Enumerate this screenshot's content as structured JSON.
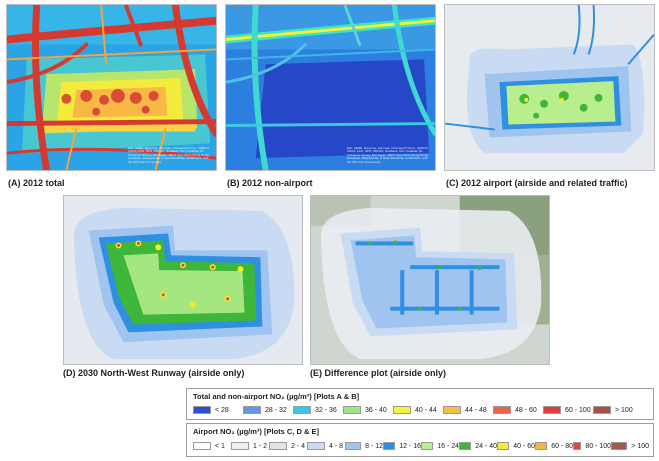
{
  "panels": [
    {
      "id": "A",
      "caption": "(A) 2012 total",
      "credit": "Esri, HERE, DeLorme, Intermap, increment P Corp., GEBCO, USGS, FAO, NPS, NRCAN, GeoBase, IGN, Kadaster NL, Ordnance Survey, Esri Japan, METI, Esri China (Hong Kong), swisstopo, MapmyIndia, © OpenStreetMap contributors, and the GIS User Community"
    },
    {
      "id": "B",
      "caption": "(B) 2012 non-airport",
      "credit": "Esri, HERE, DeLorme, Intermap, increment P Corp., GEBCO, USGS, FAO, NPS, NRCAN, GeoBase, IGN, Kadaster NL, Ordnance Survey, Esri Japan, METI, Esri China (Hong Kong), swisstopo, MapmyIndia, © OpenStreetMap contributors, and the GIS User Community"
    },
    {
      "id": "C",
      "caption": "(C) 2012 airport (airside and related traffic)"
    },
    {
      "id": "D",
      "caption": "(D) 2030 North-West Runway (airside only)"
    },
    {
      "id": "E",
      "caption": "(E) Difference plot (airside only)"
    }
  ],
  "legend_total": {
    "title": "Total and non-airport NO₂ (µg/m³) [Plots A & B]",
    "items": [
      {
        "label": "< 28",
        "color": "#2a4fd6"
      },
      {
        "label": "28 - 32",
        "color": "#5f98ea"
      },
      {
        "label": "32 - 36",
        "color": "#33c8ec"
      },
      {
        "label": "36 - 40",
        "color": "#9de68c"
      },
      {
        "label": "40 - 44",
        "color": "#f5f23c"
      },
      {
        "label": "44 - 48",
        "color": "#f7bd45"
      },
      {
        "label": "48 - 60",
        "color": "#f5604a"
      },
      {
        "label": "60 - 100",
        "color": "#e03a3a"
      },
      {
        "label": "> 100",
        "color": "#b04c42"
      }
    ]
  },
  "legend_airport": {
    "title": "Airport NO₂ (µg/m³) [Plots C, D & E]",
    "items": [
      {
        "label": "< 1",
        "color": "#ffffff"
      },
      {
        "label": "1 - 2",
        "color": "#eeeeee"
      },
      {
        "label": "2 - 4",
        "color": "#dfe3ea"
      },
      {
        "label": "4 - 8",
        "color": "#c9daf3"
      },
      {
        "label": "8 - 12",
        "color": "#9fc4ef"
      },
      {
        "label": "12 - 16",
        "color": "#2f8fe0"
      },
      {
        "label": "16 - 24",
        "color": "#b8ee8e"
      },
      {
        "label": "24 - 40",
        "color": "#3db63a"
      },
      {
        "label": "40 - 60",
        "color": "#f4ec2d"
      },
      {
        "label": "60 - 80",
        "color": "#f6b53b"
      },
      {
        "label": "80 - 100",
        "color": "#e8453b"
      },
      {
        "label": "> 100",
        "color": "#a55a44"
      }
    ]
  }
}
